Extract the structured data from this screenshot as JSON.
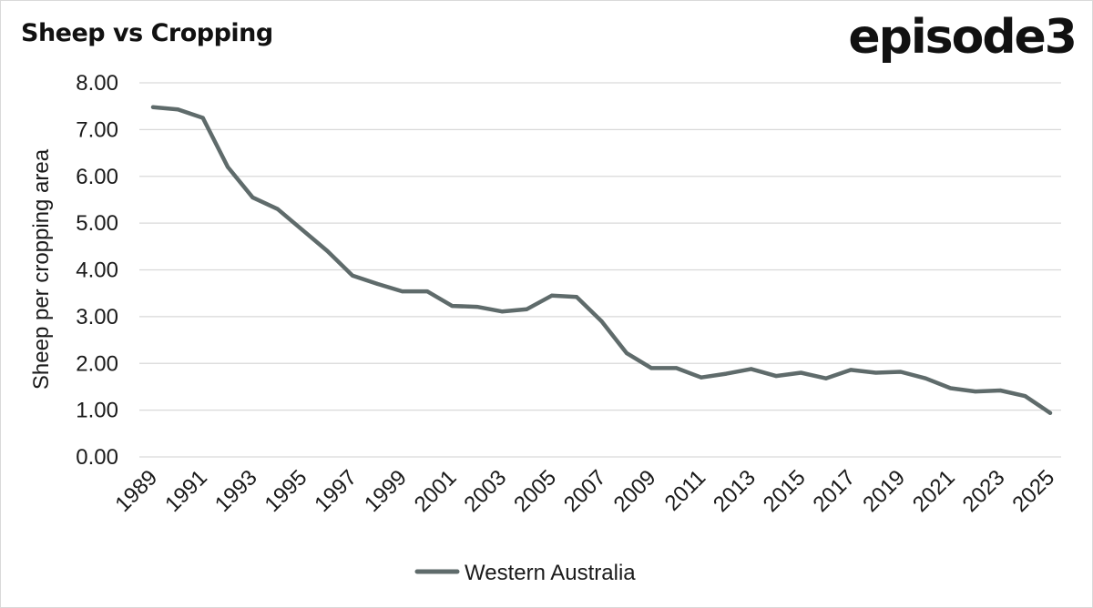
{
  "brand": {
    "logo_text": "episode3"
  },
  "colors": {
    "line": "#5f6b6b",
    "grid": "#d9d9d9",
    "text": "#1a1a1a"
  },
  "chart_data": {
    "type": "line",
    "title": "Sheep vs Cropping",
    "xlabel": "",
    "ylabel": "Sheep per cropping area",
    "ylim": [
      0,
      8
    ],
    "yticks": [
      "0.00",
      "1.00",
      "2.00",
      "3.00",
      "4.00",
      "5.00",
      "6.00",
      "7.00",
      "8.00"
    ],
    "xticks": [
      "1989",
      "1991",
      "1993",
      "1995",
      "1997",
      "1999",
      "2001",
      "2003",
      "2005",
      "2007",
      "2009",
      "2011",
      "2013",
      "2015",
      "2017",
      "2019",
      "2021",
      "2023",
      "2025"
    ],
    "grid": true,
    "legend": "bottom-center",
    "x": [
      1989,
      1990,
      1991,
      1992,
      1993,
      1994,
      1995,
      1996,
      1997,
      1998,
      1999,
      2000,
      2001,
      2002,
      2003,
      2004,
      2005,
      2006,
      2007,
      2008,
      2009,
      2010,
      2011,
      2012,
      2013,
      2014,
      2015,
      2016,
      2017,
      2018,
      2019,
      2020,
      2021,
      2022,
      2023,
      2024,
      2025
    ],
    "series": [
      {
        "name": "Western Australia",
        "values": [
          7.48,
          7.43,
          7.25,
          6.2,
          5.55,
          5.3,
          4.85,
          4.4,
          3.88,
          3.7,
          3.54,
          3.54,
          3.23,
          3.21,
          3.11,
          3.16,
          3.45,
          3.42,
          2.9,
          2.22,
          1.9,
          1.9,
          1.7,
          1.78,
          1.88,
          1.73,
          1.8,
          1.68,
          1.86,
          1.8,
          1.82,
          1.68,
          1.47,
          1.4,
          1.42,
          1.3,
          0.94
        ]
      }
    ]
  }
}
